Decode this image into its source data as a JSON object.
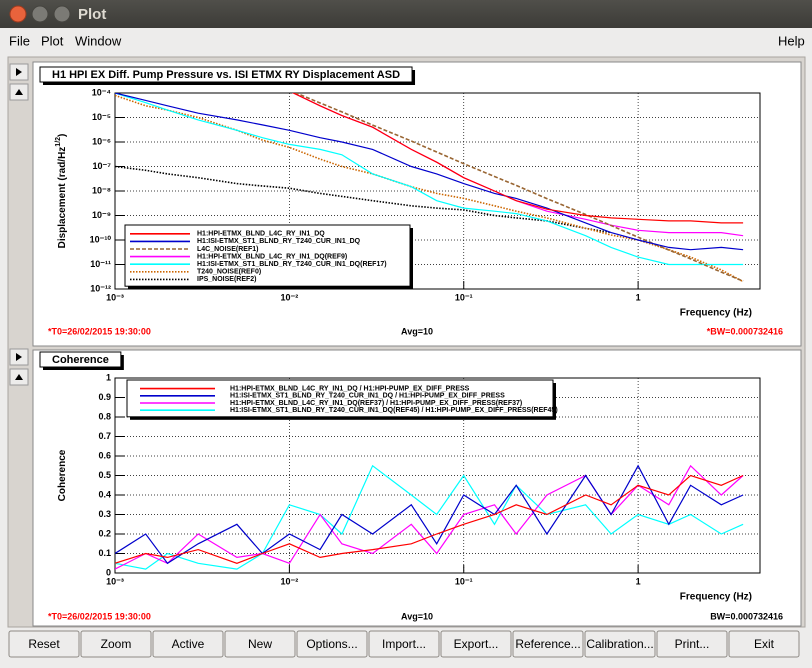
{
  "window": {
    "title": "Plot"
  },
  "menu": [
    "File",
    "Plot",
    "Window"
  ],
  "help": "Help",
  "buttons": [
    "Reset",
    "Zoom",
    "Active",
    "New",
    "Options...",
    "Import...",
    "Export...",
    "Reference...",
    "Calibration...",
    "Print...",
    "Exit"
  ],
  "chart_data": [
    {
      "type": "line",
      "title": "H1 HPI EX Diff. Pump Pressure vs. ISI ETMX RY Displacement ASD",
      "x_label": "Frequency (Hz)",
      "y_label": [
        "Displacement (rad/Hz",
        "1/2",
        ")"
      ],
      "xlog": true,
      "ylog": true,
      "grid": true,
      "legend": "lower left",
      "xlim": [
        0.001,
        5
      ],
      "ylim": [
        1e-12,
        0.0001
      ],
      "xticks": [
        {
          "value": 0.001,
          "label": "10⁻³"
        },
        {
          "value": 0.01,
          "label": "10⁻²"
        },
        {
          "value": 0.1,
          "label": "10⁻¹"
        },
        1
      ],
      "yticks": [
        {
          "value": 1e-12,
          "label": "10⁻¹²"
        },
        {
          "value": 1e-11,
          "label": "10⁻¹¹"
        },
        {
          "value": 1e-10,
          "label": "10⁻¹⁰"
        },
        {
          "value": 1e-09,
          "label": "10⁻⁹"
        },
        {
          "value": 1e-08,
          "label": "10⁻⁸"
        },
        {
          "value": 1e-07,
          "label": "10⁻⁷"
        },
        {
          "value": 1e-06,
          "label": "10⁻⁶"
        },
        {
          "value": 1e-05,
          "label": "10⁻⁵"
        },
        {
          "value": 0.0001,
          "label": "10⁻⁴"
        }
      ],
      "x": [
        0.001,
        0.0015,
        0.002,
        0.003,
        0.005,
        0.007,
        0.01,
        0.015,
        0.02,
        0.03,
        0.05,
        0.07,
        0.1,
        0.15,
        0.2,
        0.3,
        0.5,
        0.7,
        1,
        1.5,
        2,
        3,
        4
      ],
      "series": [
        {
          "name": "H1:HPI-ETMX_BLND_L4C_RY_IN1_DQ",
          "color": "#ff0000",
          "style": "solid",
          "values": [
            null,
            null,
            null,
            null,
            null,
            null,
            0.00012,
            3e-05,
            1.2e-05,
            4e-06,
            5e-07,
            1.5e-07,
            3.5e-08,
            1e-08,
            4e-09,
            1.8e-09,
            1e-09,
            8e-10,
            7e-10,
            6e-10,
            6e-10,
            5e-10,
            5e-10
          ]
        },
        {
          "name": "H1:ISI-ETMX_ST1_BLND_RY_T240_CUR_IN1_DQ",
          "color": "#0000cc",
          "style": "solid",
          "values": [
            0.0001,
            5e-05,
            3e-05,
            1.5e-05,
            8e-06,
            5e-06,
            3e-06,
            1.5e-06,
            1e-06,
            5e-07,
            1e-07,
            5e-08,
            2e-08,
            8e-09,
            5e-09,
            2e-09,
            5e-10,
            2e-10,
            1e-10,
            5e-11,
            4e-11,
            5e-11,
            4e-11
          ]
        },
        {
          "name": "L4C_NOISE(REF1)",
          "color": "#996633",
          "style": "dashed",
          "values": [
            null,
            null,
            null,
            null,
            null,
            null,
            0.00013,
            3.9e-05,
            1.7e-05,
            4.9e-06,
            1.1e-06,
            3.9e-07,
            1.3e-07,
            3.9e-08,
            1.7e-08,
            4.9e-09,
            1.1e-09,
            3.9e-10,
            1.3e-10,
            3.9e-11,
            1.7e-11,
            4.9e-12,
            2.1e-12
          ]
        },
        {
          "name": "H1:HPI-ETMX_BLND_L4C_RY_IN1_DQ(REF9)",
          "color": "#ff00ff",
          "style": "solid",
          "values": [
            null,
            null,
            null,
            null,
            null,
            null,
            0.00012,
            3e-05,
            1.2e-05,
            4e-06,
            5e-07,
            1.5e-07,
            3.5e-08,
            1e-08,
            4e-09,
            1.5e-09,
            7e-10,
            4e-10,
            2.5e-10,
            2e-10,
            2e-10,
            2e-10,
            1.5e-10
          ]
        },
        {
          "name": "H1:ISI-ETMX_ST1_BLND_RY_T240_CUR_IN1_DQ(REF17)",
          "color": "#00ffff",
          "style": "solid",
          "values": [
            0.0001,
            4e-05,
            2e-05,
            8e-06,
            3e-06,
            1.5e-06,
            8e-07,
            5e-07,
            3e-07,
            5e-08,
            1.5e-08,
            4e-09,
            2e-09,
            1.5e-09,
            1.2e-09,
            6e-10,
            1.5e-10,
            5e-11,
            2e-11,
            1e-11,
            1e-11,
            1e-11,
            1e-11
          ]
        },
        {
          "name": "T240_NOISE(REF0)",
          "color": "#cc6600",
          "style": "dotted",
          "values": [
            8e-05,
            3e-05,
            2e-05,
            1e-05,
            3e-06,
            1.2e-06,
            6e-07,
            2e-07,
            1e-07,
            5e-08,
            1.5e-08,
            8e-09,
            5e-09,
            2.5e-09,
            1.5e-09,
            8e-10,
            3e-10,
            1.6e-10,
            1e-10,
            4e-11,
            2e-11,
            6e-12,
            2e-12
          ]
        },
        {
          "name": "IPS_NOISE(REF2)",
          "color": "#000000",
          "style": "dotted",
          "values": [
            1e-07,
            7e-08,
            5e-08,
            3.5e-08,
            2e-08,
            1.6e-08,
            1.3e-08,
            8e-09,
            6e-09,
            4e-09,
            2.5e-09,
            2e-09,
            1.7e-09,
            1e-09,
            8e-10,
            6e-10,
            3e-10,
            2e-10,
            null,
            null,
            null,
            null,
            null
          ]
        }
      ],
      "annotations": [
        "*T0=26/02/2015 19:30:00",
        "Avg=10",
        "*BW=0.000732416"
      ],
      "annotation_colors": [
        "#ff0000",
        "#000000",
        "#ff0000"
      ]
    },
    {
      "type": "line",
      "title": "Coherence",
      "x_label": "Frequency (Hz)",
      "y_label": [
        "Coherence"
      ],
      "xlog": true,
      "ylog": false,
      "grid": true,
      "legend": "upper left",
      "xlim": [
        0.001,
        5
      ],
      "ylim": [
        0,
        1
      ],
      "xticks": [
        {
          "value": 0.001,
          "label": "10⁻³"
        },
        {
          "value": 0.01,
          "label": "10⁻²"
        },
        {
          "value": 0.1,
          "label": "10⁻¹"
        },
        1
      ],
      "yticks": [
        0,
        0.1,
        0.2,
        0.3,
        0.4,
        0.5,
        0.6,
        0.7,
        0.8,
        0.9,
        1
      ],
      "x": [
        0.001,
        0.0015,
        0.002,
        0.003,
        0.005,
        0.007,
        0.01,
        0.015,
        0.02,
        0.03,
        0.05,
        0.07,
        0.1,
        0.15,
        0.2,
        0.3,
        0.5,
        0.7,
        1,
        1.5,
        2,
        3,
        4
      ],
      "series": [
        {
          "name": "H1:HPI-ETMX_BLND_L4C_RY_IN1_DQ / H1:HPI-PUMP_EX_DIFF_PRESS",
          "color": "#ff0000",
          "style": "solid",
          "values": [
            0.05,
            0.1,
            0.08,
            0.12,
            0.05,
            0.1,
            0.15,
            0.08,
            0.1,
            0.12,
            0.15,
            0.2,
            0.25,
            0.3,
            0.35,
            0.3,
            0.4,
            0.35,
            0.45,
            0.4,
            0.5,
            0.45,
            0.5
          ]
        },
        {
          "name": "H1:ISI-ETMX_ST1_BLND_RY_T240_CUR_IN1_DQ / H1:HPI-PUMP_EX_DIFF_PRESS",
          "color": "#0000cc",
          "style": "solid",
          "values": [
            0.1,
            0.2,
            0.05,
            0.15,
            0.25,
            0.1,
            0.2,
            0.12,
            0.3,
            0.2,
            0.35,
            0.15,
            0.4,
            0.3,
            0.45,
            0.2,
            0.5,
            0.3,
            0.55,
            0.25,
            0.45,
            0.35,
            0.4
          ]
        },
        {
          "name": "H1:HPI-ETMX_BLND_L4C_RY_IN1_DQ(REF37) / H1:HPI-PUMP_EX_DIFF_PRESS(REF37)",
          "color": "#ff00ff",
          "style": "solid",
          "values": [
            0.02,
            0.1,
            0.05,
            0.2,
            0.08,
            0.1,
            0.05,
            0.3,
            0.15,
            0.1,
            0.25,
            0.1,
            0.3,
            0.35,
            0.2,
            0.4,
            0.5,
            0.3,
            0.45,
            0.35,
            0.55,
            0.4,
            0.5
          ]
        },
        {
          "name": "H1:ISI-ETMX_ST1_BLND_RY_T240_CUR_IN1_DQ(REF45) / H1:HPI-PUMP_EX_DIFF_PRESS(REF45)",
          "color": "#00ffff",
          "style": "solid",
          "values": [
            0.05,
            0.02,
            0.1,
            0.05,
            0.02,
            0.1,
            0.35,
            0.3,
            0.2,
            0.55,
            0.4,
            0.3,
            0.5,
            0.25,
            0.45,
            0.3,
            0.35,
            0.2,
            0.3,
            0.25,
            0.3,
            0.2,
            0.25
          ]
        }
      ],
      "annotations": [
        "*T0=26/02/2015 19:30:00",
        "Avg=10",
        "BW=0.000732416"
      ],
      "annotation_colors": [
        "#ff0000",
        "#000000",
        "#000000"
      ]
    }
  ]
}
